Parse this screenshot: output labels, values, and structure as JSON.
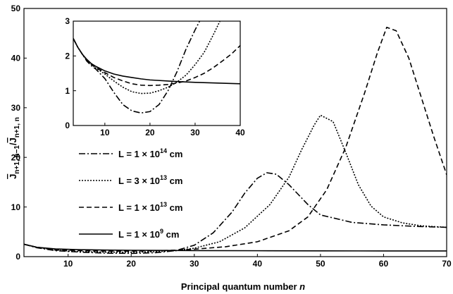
{
  "chart_data": [
    {
      "type": "line",
      "panel": "main",
      "xlabel": "Principal quantum number",
      "xlabel_italic": "n",
      "ylabel_parts": [
        "J",
        "n+1, n−1",
        "/",
        "J",
        "n+1, n"
      ],
      "xlim": [
        3,
        70
      ],
      "ylim": [
        0,
        50
      ],
      "xticks": [
        10,
        20,
        30,
        40,
        50,
        60,
        70
      ],
      "yticks": [
        0,
        10,
        20,
        30,
        40,
        50
      ],
      "grid": false,
      "legend_position": "left-middle",
      "series": [
        {
          "name_base": "L = 1 × 10",
          "name_exp": "14",
          "name_unit": " cm",
          "style": "dash-dot",
          "x": [
            3,
            5,
            8,
            12,
            16,
            20,
            24,
            27,
            30,
            33,
            36,
            38,
            40,
            41.5,
            43,
            45,
            48,
            50,
            55,
            60,
            65,
            70
          ],
          "y": [
            2.5,
            1.8,
            1.2,
            0.9,
            0.7,
            0.65,
            0.8,
            1.2,
            2.3,
            4.8,
            9.0,
            12.8,
            15.8,
            16.9,
            16.6,
            14.5,
            10.5,
            8.4,
            6.9,
            6.4,
            6.1,
            5.9
          ]
        },
        {
          "name_base": "L = 3 × 10",
          "name_exp": "13",
          "name_unit": " cm",
          "style": "dotted",
          "x": [
            3,
            5,
            8,
            12,
            16,
            20,
            24,
            27,
            30,
            34,
            38,
            42,
            45,
            47,
            49,
            50,
            52,
            54,
            56,
            58,
            60,
            63,
            66,
            70
          ],
          "y": [
            2.5,
            1.9,
            1.3,
            1.0,
            0.9,
            0.9,
            1.0,
            1.2,
            1.7,
            3.0,
            5.8,
            10.5,
            16.0,
            21.5,
            26.5,
            28.5,
            27.2,
            21.0,
            14.5,
            10.2,
            8.0,
            6.8,
            6.2,
            5.9
          ]
        },
        {
          "name_base": "L = 1 × 10",
          "name_exp": "13",
          "name_unit": " cm",
          "style": "dashed",
          "x": [
            3,
            5,
            8,
            12,
            16,
            20,
            24,
            27,
            30,
            35,
            40,
            45,
            48,
            51,
            54,
            57,
            59,
            60.5,
            62,
            64,
            66,
            68,
            70
          ],
          "y": [
            2.5,
            1.9,
            1.4,
            1.2,
            1.1,
            1.1,
            1.2,
            1.3,
            1.5,
            2.0,
            3.0,
            5.2,
            8.0,
            13.5,
            22.0,
            33.0,
            41.0,
            46.2,
            45.5,
            40.0,
            32.0,
            24.0,
            16.5
          ]
        },
        {
          "name_base": "L = 1 × 10",
          "name_exp": "9",
          "name_unit": " cm",
          "style": "solid",
          "x": [
            3,
            5,
            8,
            12,
            16,
            20,
            25,
            30,
            40,
            50,
            60,
            70
          ],
          "y": [
            2.5,
            1.9,
            1.55,
            1.4,
            1.32,
            1.28,
            1.25,
            1.22,
            1.19,
            1.16,
            1.15,
            1.15
          ]
        }
      ]
    },
    {
      "type": "line",
      "panel": "inset",
      "xlim": [
        3,
        40
      ],
      "ylim": [
        0,
        3
      ],
      "xticks": [
        10,
        20,
        30,
        40
      ],
      "yticks": [
        0,
        1,
        2,
        3
      ],
      "grid": false,
      "series": [
        {
          "style": "dash-dot",
          "x": [
            3,
            4,
            5,
            6,
            7,
            8,
            10,
            12,
            14,
            16,
            18,
            20,
            22,
            24,
            26,
            28,
            30,
            31
          ],
          "y": [
            2.5,
            2.25,
            2.05,
            1.85,
            1.72,
            1.62,
            1.35,
            0.95,
            0.6,
            0.42,
            0.36,
            0.4,
            0.6,
            1.0,
            1.55,
            2.2,
            2.75,
            3.0
          ]
        },
        {
          "style": "dotted",
          "x": [
            3,
            4,
            5,
            6,
            7,
            8,
            10,
            12,
            14,
            16,
            18,
            20,
            22,
            24,
            26,
            28,
            30,
            32,
            34,
            35.5
          ],
          "y": [
            2.5,
            2.25,
            2.05,
            1.88,
            1.76,
            1.65,
            1.48,
            1.28,
            1.1,
            0.97,
            0.92,
            0.93,
            1.0,
            1.1,
            1.25,
            1.45,
            1.75,
            2.1,
            2.6,
            3.0
          ]
        },
        {
          "style": "dashed",
          "x": [
            3,
            4,
            5,
            6,
            7,
            8,
            10,
            12,
            14,
            16,
            18,
            20,
            22,
            24,
            26,
            28,
            30,
            32,
            34,
            36,
            38,
            40
          ],
          "y": [
            2.5,
            2.25,
            2.05,
            1.88,
            1.76,
            1.67,
            1.52,
            1.38,
            1.28,
            1.2,
            1.16,
            1.15,
            1.16,
            1.18,
            1.22,
            1.28,
            1.38,
            1.5,
            1.66,
            1.85,
            2.05,
            2.3
          ]
        },
        {
          "style": "solid",
          "x": [
            3,
            4,
            5,
            6,
            7,
            8,
            10,
            12,
            14,
            16,
            18,
            20,
            25,
            30,
            35,
            40
          ],
          "y": [
            2.5,
            2.25,
            2.05,
            1.9,
            1.78,
            1.7,
            1.57,
            1.48,
            1.42,
            1.38,
            1.34,
            1.31,
            1.27,
            1.24,
            1.22,
            1.2
          ]
        }
      ]
    }
  ]
}
